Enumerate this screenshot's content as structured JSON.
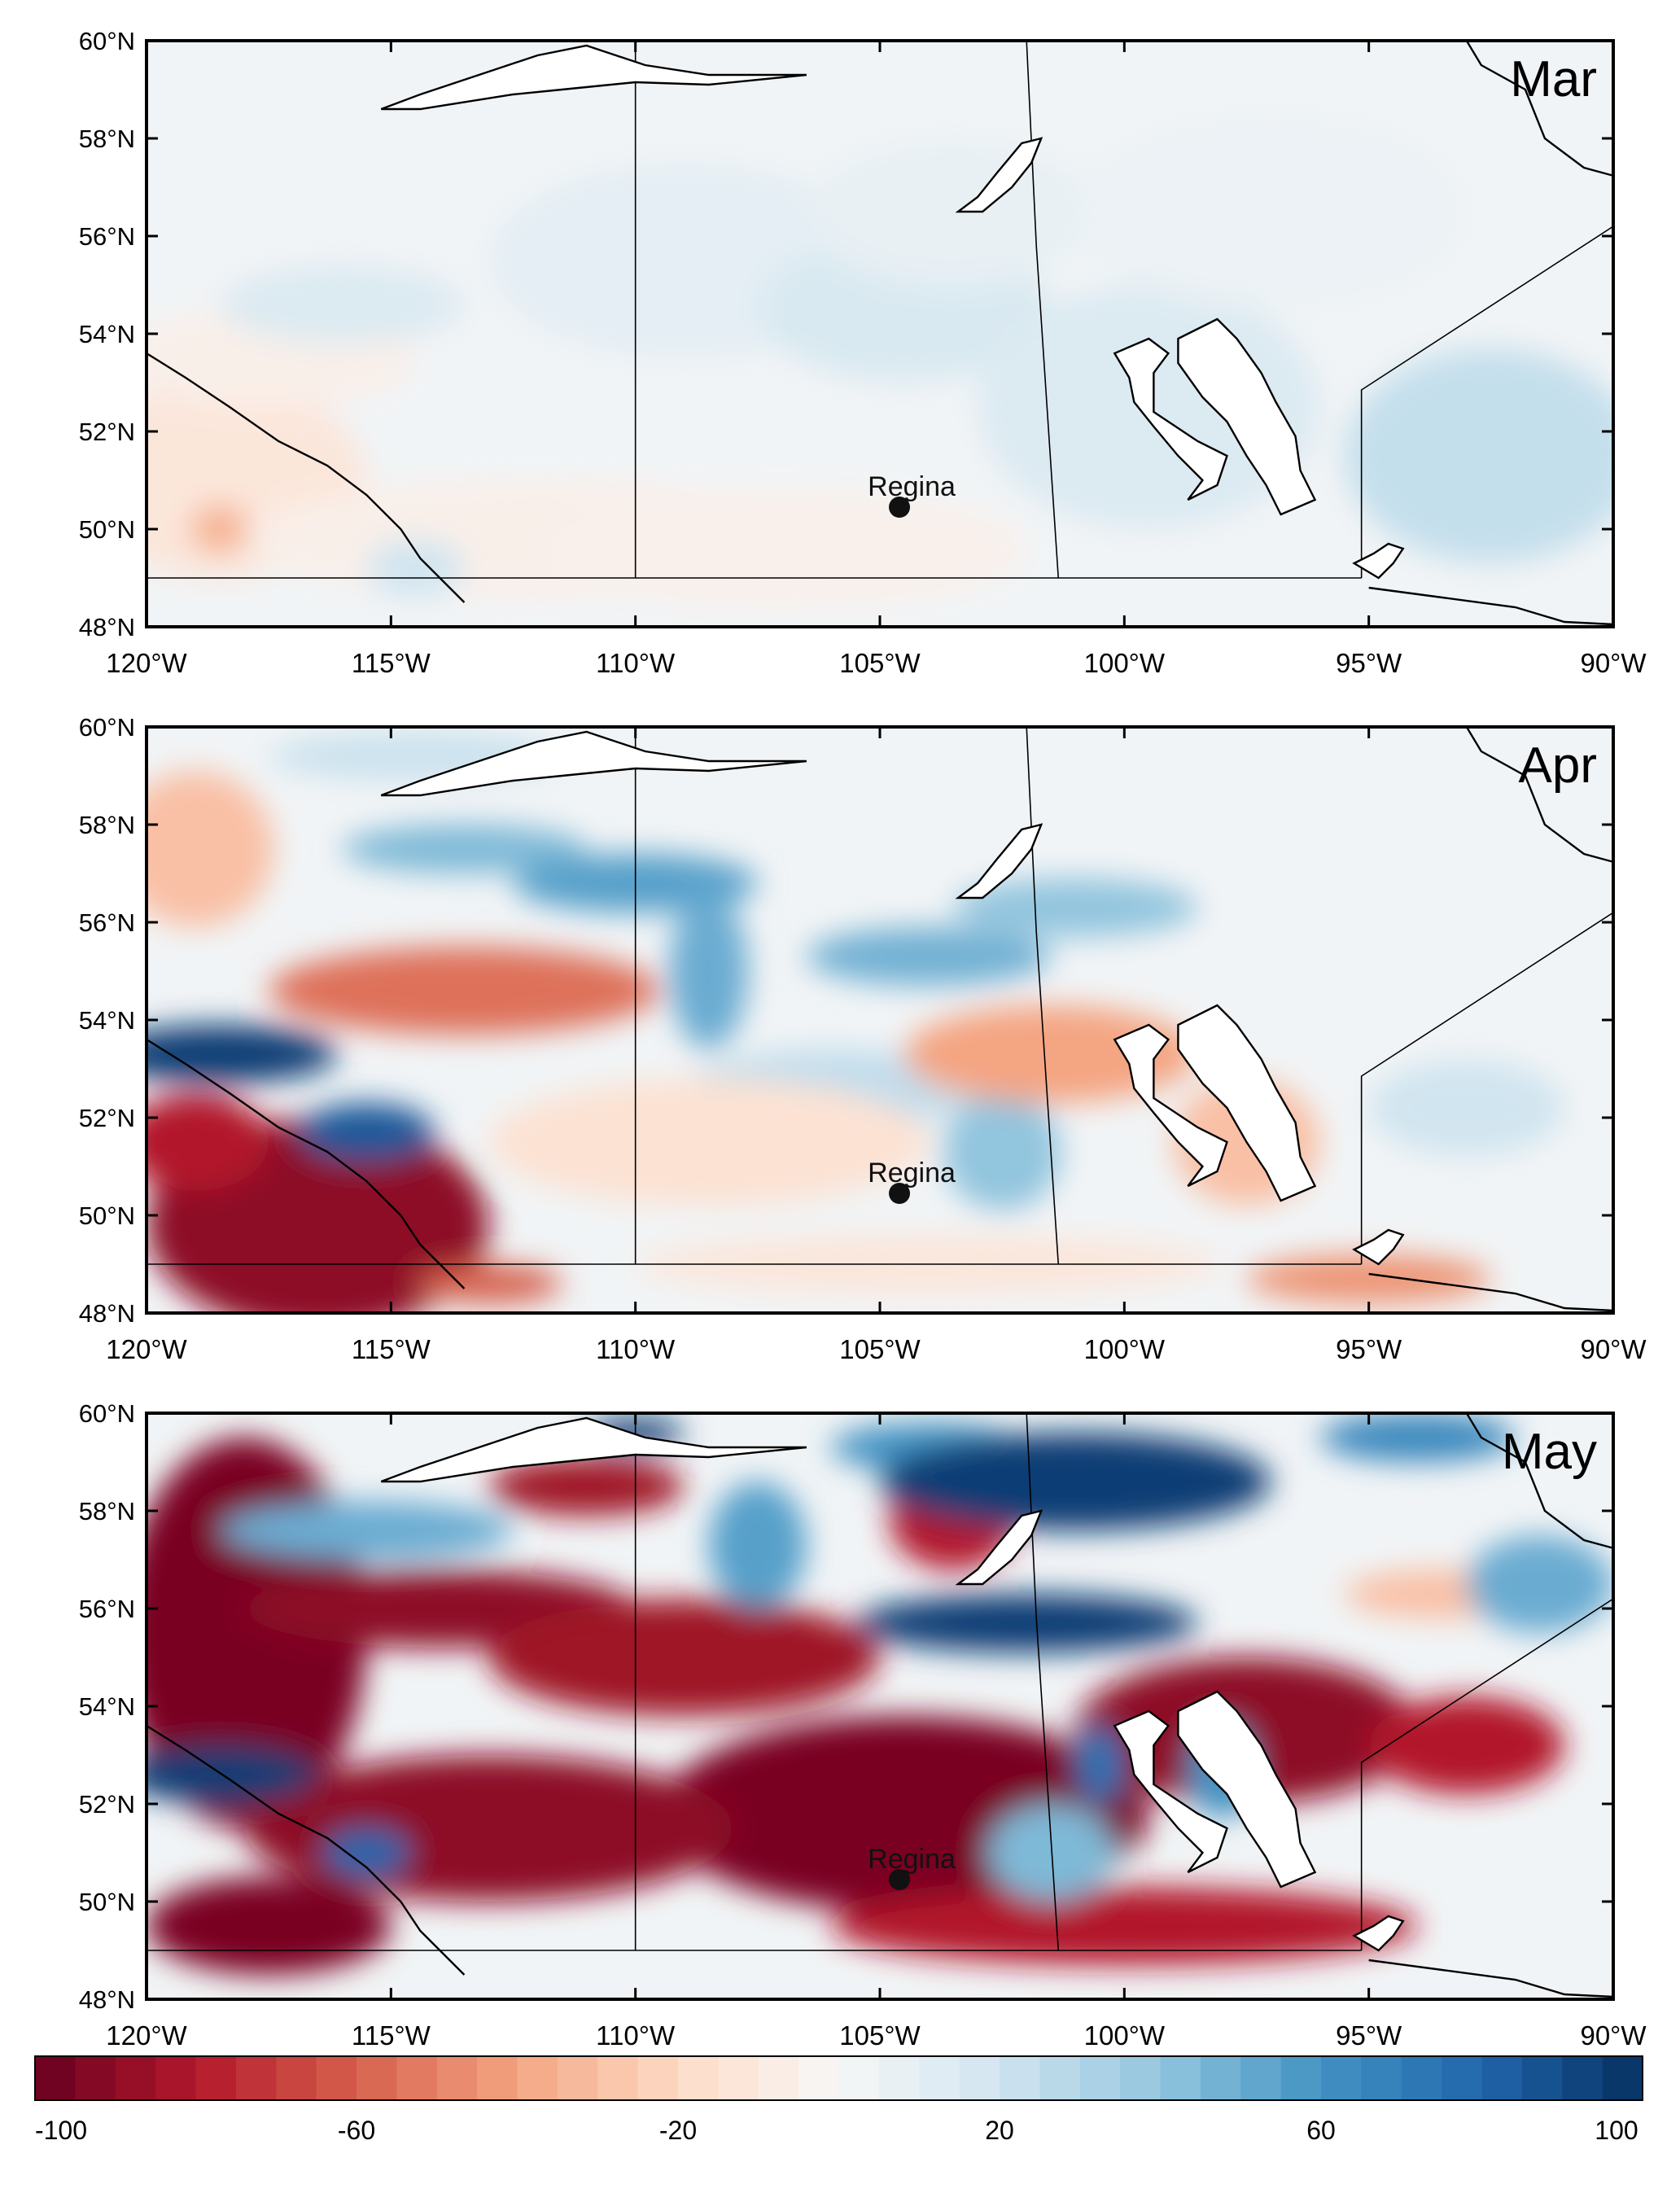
{
  "panels": [
    {
      "month": "Mar",
      "city_label": "Regina",
      "blobs": [
        {
          "lon": -118.5,
          "lat": 51.0,
          "rlon": 3.0,
          "rlat": 2.0,
          "value": -12
        },
        {
          "lon": -112.0,
          "lat": 49.8,
          "rlon": 6.0,
          "rlat": 1.2,
          "value": -6
        },
        {
          "lon": -107.0,
          "lat": 49.6,
          "rlon": 5.0,
          "rlat": 1.2,
          "value": -5
        },
        {
          "lon": -117.5,
          "lat": 53.5,
          "rlon": 3.0,
          "rlat": 1.0,
          "value": -6
        },
        {
          "lon": -118.5,
          "lat": 50.0,
          "rlon": 0.6,
          "rlat": 0.5,
          "value": -35
        },
        {
          "lon": -116.0,
          "lat": 54.6,
          "rlon": 2.5,
          "rlat": 0.8,
          "value": 14
        },
        {
          "lon": -109.0,
          "lat": 55.5,
          "rlon": 4.0,
          "rlat": 2.0,
          "value": 10
        },
        {
          "lon": -104.5,
          "lat": 54.5,
          "rlon": 3.0,
          "rlat": 1.5,
          "value": 16
        },
        {
          "lon": -103.5,
          "lat": 56.5,
          "rlon": 3.0,
          "rlat": 1.5,
          "value": 8
        },
        {
          "lon": -99.5,
          "lat": 52.5,
          "rlon": 3.5,
          "rlat": 2.5,
          "value": 14
        },
        {
          "lon": -92.5,
          "lat": 51.5,
          "rlon": 3.0,
          "rlat": 2.2,
          "value": 24
        },
        {
          "lon": -97.0,
          "lat": 56.5,
          "rlon": 4.0,
          "rlat": 2.0,
          "value": 6
        },
        {
          "lon": -114.5,
          "lat": 49.2,
          "rlon": 1.0,
          "rlat": 0.6,
          "value": 20
        }
      ]
    },
    {
      "month": "Apr",
      "city_label": "Regina",
      "blobs": [
        {
          "lon": -116.5,
          "lat": 49.8,
          "rlon": 3.5,
          "rlat": 2.2,
          "value": -90
        },
        {
          "lon": -119.0,
          "lat": 51.5,
          "rlon": 1.5,
          "rlat": 1.0,
          "value": -80
        },
        {
          "lon": -118.5,
          "lat": 53.3,
          "rlon": 2.4,
          "rlat": 0.6,
          "value": 95
        },
        {
          "lon": -115.5,
          "lat": 51.7,
          "rlon": 1.4,
          "rlat": 0.6,
          "value": 85
        },
        {
          "lon": -113.5,
          "lat": 54.6,
          "rlon": 4.0,
          "rlat": 0.9,
          "value": -55
        },
        {
          "lon": -119.0,
          "lat": 57.5,
          "rlon": 1.6,
          "rlat": 1.6,
          "value": -30
        },
        {
          "lon": -114.5,
          "lat": 59.4,
          "rlon": 3.0,
          "rlat": 0.5,
          "value": 22
        },
        {
          "lon": -113.5,
          "lat": 57.5,
          "rlon": 2.5,
          "rlat": 0.5,
          "value": 45
        },
        {
          "lon": -110.0,
          "lat": 56.8,
          "rlon": 2.5,
          "rlat": 0.6,
          "value": 55
        },
        {
          "lon": -108.5,
          "lat": 55.0,
          "rlon": 0.8,
          "rlat": 1.6,
          "value": 50
        },
        {
          "lon": -104.0,
          "lat": 55.3,
          "rlon": 2.5,
          "rlat": 0.6,
          "value": 48
        },
        {
          "lon": -101.0,
          "lat": 56.3,
          "rlon": 2.5,
          "rlat": 0.6,
          "value": 40
        },
        {
          "lon": -106.0,
          "lat": 52.6,
          "rlon": 3.0,
          "rlat": 0.8,
          "value": 25
        },
        {
          "lon": -102.5,
          "lat": 51.3,
          "rlon": 1.2,
          "rlat": 1.2,
          "value": 40
        },
        {
          "lon": -101.5,
          "lat": 53.3,
          "rlon": 3.0,
          "rlat": 1.0,
          "value": -40
        },
        {
          "lon": -97.5,
          "lat": 51.5,
          "rlon": 1.5,
          "rlat": 1.3,
          "value": -30
        },
        {
          "lon": -108.5,
          "lat": 51.5,
          "rlon": 4.5,
          "rlat": 1.3,
          "value": -15
        },
        {
          "lon": -104.0,
          "lat": 49.0,
          "rlon": 6.0,
          "rlat": 0.6,
          "value": -12
        },
        {
          "lon": -95.0,
          "lat": 48.7,
          "rlon": 2.5,
          "rlat": 0.5,
          "value": -45
        },
        {
          "lon": -93.0,
          "lat": 52.2,
          "rlon": 2.0,
          "rlat": 1.0,
          "value": 20
        },
        {
          "lon": -113.0,
          "lat": 48.6,
          "rlon": 1.5,
          "rlat": 0.4,
          "value": -60
        }
      ]
    },
    {
      "month": "May",
      "city_label": "Regina",
      "blobs": [
        {
          "lon": -118.0,
          "lat": 55.5,
          "rlon": 2.5,
          "rlat": 4.0,
          "value": -95
        },
        {
          "lon": -114.0,
          "lat": 56.0,
          "rlon": 4.0,
          "rlat": 0.8,
          "value": -90
        },
        {
          "lon": -109.0,
          "lat": 55.0,
          "rlon": 4.0,
          "rlat": 1.2,
          "value": -85
        },
        {
          "lon": -104.5,
          "lat": 51.8,
          "rlon": 5.0,
          "rlat": 2.0,
          "value": -95
        },
        {
          "lon": -113.0,
          "lat": 51.5,
          "rlon": 5.0,
          "rlat": 1.5,
          "value": -90
        },
        {
          "lon": -103.5,
          "lat": 57.8,
          "rlon": 1.3,
          "rlat": 1.0,
          "value": -80
        },
        {
          "lon": -111.0,
          "lat": 58.5,
          "rlon": 2.0,
          "rlat": 0.6,
          "value": -85
        },
        {
          "lon": -97.5,
          "lat": 53.5,
          "rlon": 3.5,
          "rlat": 1.5,
          "value": -90
        },
        {
          "lon": -93.0,
          "lat": 53.2,
          "rlon": 2.0,
          "rlat": 1.0,
          "value": -80
        },
        {
          "lon": -100.0,
          "lat": 49.5,
          "rlon": 6.0,
          "rlat": 0.8,
          "value": -80
        },
        {
          "lon": -93.5,
          "lat": 56.3,
          "rlon": 2.0,
          "rlat": 0.5,
          "value": -30
        },
        {
          "lon": -117.5,
          "lat": 49.5,
          "rlon": 2.5,
          "rlat": 1.0,
          "value": -95
        },
        {
          "lon": -118.5,
          "lat": 52.6,
          "rlon": 2.0,
          "rlat": 0.6,
          "value": 95
        },
        {
          "lon": -115.5,
          "lat": 51.0,
          "rlon": 0.9,
          "rlat": 0.5,
          "value": 80
        },
        {
          "lon": -115.5,
          "lat": 57.6,
          "rlon": 3.0,
          "rlat": 0.6,
          "value": 50
        },
        {
          "lon": -110.0,
          "lat": 59.6,
          "rlon": 1.0,
          "rlat": 0.3,
          "value": 95
        },
        {
          "lon": -107.5,
          "lat": 57.3,
          "rlon": 1.0,
          "rlat": 1.3,
          "value": 55
        },
        {
          "lon": -104.0,
          "lat": 59.3,
          "rlon": 2.0,
          "rlat": 0.5,
          "value": 60
        },
        {
          "lon": -101.0,
          "lat": 58.6,
          "rlon": 4.0,
          "rlat": 1.0,
          "value": 95
        },
        {
          "lon": -102.0,
          "lat": 55.7,
          "rlon": 3.5,
          "rlat": 0.6,
          "value": 95
        },
        {
          "lon": -94.0,
          "lat": 59.5,
          "rlon": 2.0,
          "rlat": 0.5,
          "value": 65
        },
        {
          "lon": -91.5,
          "lat": 56.5,
          "rlon": 1.5,
          "rlat": 1.0,
          "value": 50
        },
        {
          "lon": -98.0,
          "lat": 52.7,
          "rlon": 0.7,
          "rlat": 1.0,
          "value": 60
        },
        {
          "lon": -100.5,
          "lat": 52.8,
          "rlon": 0.5,
          "rlat": 0.8,
          "value": 75
        },
        {
          "lon": -101.5,
          "lat": 51.0,
          "rlon": 1.3,
          "rlat": 1.0,
          "value": 45
        }
      ]
    }
  ],
  "axes": {
    "lon_ticks": [
      "120°W",
      "115°W",
      "110°W",
      "105°W",
      "100°W",
      "95°W",
      "90°W"
    ],
    "lat_ticks": [
      "48°N",
      "50°N",
      "52°N",
      "54°N",
      "56°N",
      "58°N",
      "60°N"
    ],
    "lon_range": [
      -120,
      -90
    ],
    "lat_range": [
      48,
      60
    ]
  },
  "colorbar": {
    "tick_labels": [
      "-100",
      "-60",
      "-20",
      "20",
      "60",
      "100"
    ],
    "range": [
      -100,
      100
    ],
    "colors": [
      "#67001f",
      "#b2182b",
      "#d6604d",
      "#f4a582",
      "#fddbc7",
      "#f7f7f7",
      "#d1e5f0",
      "#92c5de",
      "#4393c3",
      "#2166ac",
      "#053061"
    ]
  },
  "city": {
    "name": "Regina",
    "lon": -104.6,
    "lat": 50.45
  },
  "map_shapes": {
    "provincial_borders": [
      [
        [
          -110,
          60
        ],
        [
          -110,
          49
        ]
      ],
      [
        [
          -102,
          60
        ],
        [
          -101.8,
          55.8
        ],
        [
          -101.35,
          49
        ]
      ],
      [
        [
          -120,
          49
        ],
        [
          -95.15,
          49
        ]
      ],
      [
        [
          -95.15,
          49
        ],
        [
          -95.15,
          52.85
        ],
        [
          -89,
          56.85
        ]
      ]
    ],
    "lakes": [
      [
        [
          -115.2,
          58.6
        ],
        [
          -114.4,
          58.9
        ],
        [
          -113.2,
          59.3
        ],
        [
          -112.0,
          59.7
        ],
        [
          -111.0,
          59.9
        ],
        [
          -109.8,
          59.5
        ],
        [
          -108.5,
          59.3
        ],
        [
          -106.5,
          59.3
        ],
        [
          -108.5,
          59.1
        ],
        [
          -110.0,
          59.15
        ],
        [
          -111.5,
          59.0
        ],
        [
          -112.5,
          58.9
        ],
        [
          -114.4,
          58.6
        ]
      ],
      [
        [
          -103.4,
          56.5
        ],
        [
          -103.0,
          56.8
        ],
        [
          -102.6,
          57.3
        ],
        [
          -102.1,
          57.9
        ],
        [
          -101.7,
          58.0
        ],
        [
          -101.9,
          57.5
        ],
        [
          -102.3,
          57.0
        ],
        [
          -102.9,
          56.5
        ]
      ],
      [
        [
          -98.7,
          50.6
        ],
        [
          -98.1,
          50.9
        ],
        [
          -97.9,
          51.5
        ],
        [
          -98.5,
          51.8
        ],
        [
          -99.4,
          52.4
        ],
        [
          -99.4,
          53.2
        ],
        [
          -99.1,
          53.6
        ],
        [
          -99.5,
          53.9
        ],
        [
          -100.2,
          53.6
        ],
        [
          -99.9,
          53.1
        ],
        [
          -99.8,
          52.6
        ],
        [
          -99.4,
          52.1
        ],
        [
          -98.9,
          51.5
        ],
        [
          -98.4,
          51.0
        ]
      ],
      [
        [
          -96.8,
          50.3
        ],
        [
          -96.1,
          50.6
        ],
        [
          -96.4,
          51.2
        ],
        [
          -96.5,
          51.9
        ],
        [
          -96.9,
          52.6
        ],
        [
          -97.2,
          53.2
        ],
        [
          -97.7,
          53.9
        ],
        [
          -98.1,
          54.3
        ],
        [
          -98.9,
          53.9
        ],
        [
          -98.9,
          53.4
        ],
        [
          -98.4,
          52.7
        ],
        [
          -97.9,
          52.2
        ],
        [
          -97.5,
          51.5
        ],
        [
          -97.1,
          50.9
        ]
      ],
      [
        [
          -95.3,
          49.3
        ],
        [
          -94.9,
          49.5
        ],
        [
          -94.6,
          49.7
        ],
        [
          -94.3,
          49.6
        ],
        [
          -94.5,
          49.3
        ],
        [
          -94.8,
          49.0
        ]
      ]
    ],
    "coast_lines": [
      [
        [
          -120,
          53.6
        ],
        [
          -119.2,
          53.1
        ],
        [
          -118.3,
          52.5
        ],
        [
          -117.3,
          51.8
        ],
        [
          -116.3,
          51.3
        ],
        [
          -115.5,
          50.7
        ],
        [
          -114.8,
          50.0
        ],
        [
          -114.4,
          49.4
        ],
        [
          -114.0,
          49.0
        ],
        [
          -113.5,
          48.5
        ]
      ],
      [
        [
          -95.0,
          48.8
        ],
        [
          -93.5,
          48.6
        ],
        [
          -92.0,
          48.4
        ],
        [
          -91.0,
          48.1
        ],
        [
          -90.0,
          48.05
        ]
      ],
      [
        [
          -93.0,
          60
        ],
        [
          -92.7,
          59.5
        ],
        [
          -91.8,
          59.0
        ],
        [
          -91.4,
          58.0
        ],
        [
          -90.6,
          57.4
        ],
        [
          -89.5,
          57.1
        ]
      ]
    ]
  }
}
